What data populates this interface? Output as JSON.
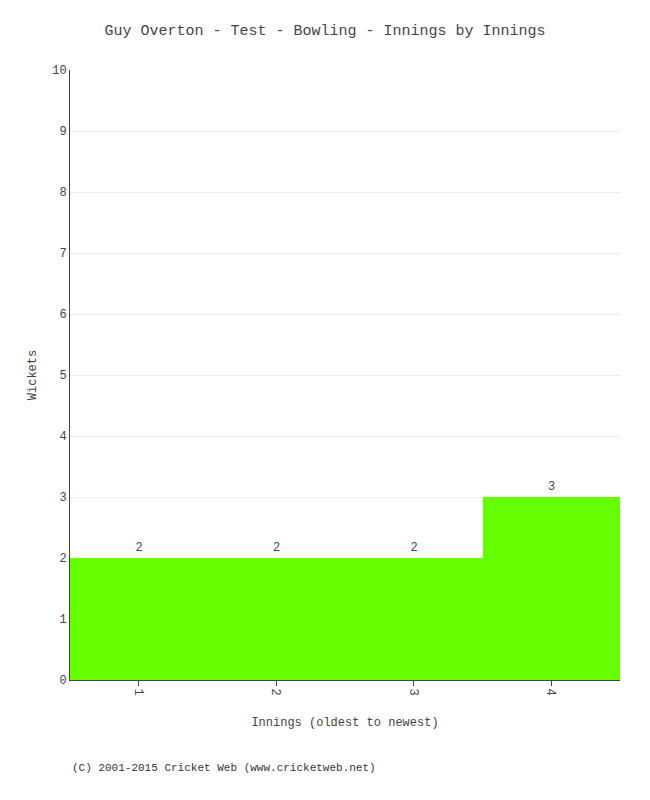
{
  "chart_data": {
    "type": "bar",
    "title": "Guy Overton - Test - Bowling - Innings by Innings",
    "xlabel": "Innings (oldest to newest)",
    "ylabel": "Wickets",
    "x": [
      1,
      2,
      3,
      4
    ],
    "values": [
      2,
      2,
      2,
      3
    ],
    "color": "#66ff00",
    "xlim": [
      0.5,
      4.5
    ],
    "xticks": [
      1,
      2,
      3,
      4
    ],
    "ylim": [
      0,
      10
    ],
    "yticks": [
      0,
      1,
      2,
      3,
      4,
      5,
      6,
      7,
      8,
      9,
      10
    ],
    "grid": true,
    "data_labels": true,
    "annotations": [
      "(C) 2001-2015 Cricket Web (www.cricketweb.net)"
    ]
  }
}
